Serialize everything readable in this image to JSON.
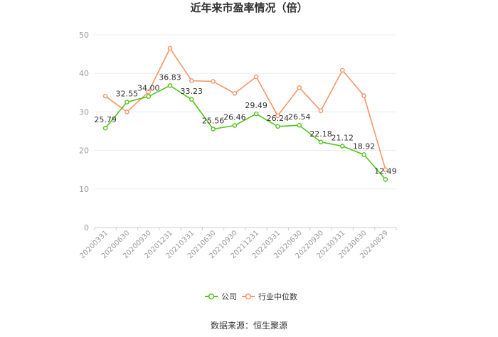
{
  "chart_data": {
    "type": "line",
    "title": "近年来市盈率情况（倍）",
    "categories": [
      "20200331",
      "20200630",
      "20200930",
      "20201231",
      "20210331",
      "20210630",
      "20210930",
      "20211231",
      "20220331",
      "20220630",
      "20220930",
      "20230331",
      "20230630",
      "20240829"
    ],
    "series": [
      {
        "name": "公司",
        "color": "#52c41a",
        "values": [
          25.79,
          32.55,
          34.0,
          36.83,
          33.23,
          25.56,
          26.46,
          29.49,
          26.24,
          26.54,
          22.18,
          21.12,
          18.92,
          12.49
        ],
        "labels": [
          "25.79",
          "32.55",
          "34.00",
          "36.83",
          "33.23",
          "25.56",
          "26.46",
          "29.49",
          "26.24",
          "26.54",
          "22.18",
          "21.12",
          "18.92",
          "12.49"
        ]
      },
      {
        "name": "行业中位数",
        "color": "#fa9466",
        "values": [
          34.1,
          30.0,
          35.2,
          46.5,
          38.1,
          37.9,
          34.8,
          39.1,
          29.0,
          36.3,
          30.3,
          40.8,
          34.2,
          15.0
        ]
      }
    ],
    "ylim": [
      0,
      50
    ],
    "yticks": [
      0,
      10,
      20,
      30,
      40,
      50
    ],
    "xlabel": "",
    "ylabel": "",
    "grid": true,
    "legend": "bottom"
  },
  "source": "数据来源：恒生聚源"
}
